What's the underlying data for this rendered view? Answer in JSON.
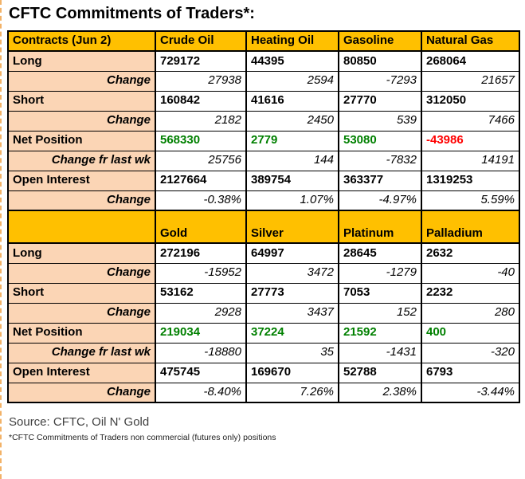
{
  "title": "CFTC Commitments of Traders*:",
  "colors": {
    "header_bg": "#FFC000",
    "label_bg": "#FBD5B5",
    "positive": "#008000",
    "negative": "#FF0000",
    "border": "#000000"
  },
  "tables": [
    {
      "name": "energy",
      "header": [
        "Contracts (Jun 2)",
        "Crude Oil",
        "Heating Oil",
        "Gasoline",
        "Natural Gas"
      ],
      "rows": [
        {
          "label": "Long",
          "type": "main",
          "values": [
            "729172",
            "44395",
            "80850",
            "268064"
          ]
        },
        {
          "label": "Change",
          "type": "change",
          "values": [
            "27938",
            "2594",
            "-7293",
            "21657"
          ]
        },
        {
          "label": "Short",
          "type": "main",
          "values": [
            "160842",
            "41616",
            "27770",
            "312050"
          ]
        },
        {
          "label": "Change",
          "type": "change",
          "values": [
            "2182",
            "2450",
            "539",
            "7466"
          ]
        },
        {
          "label": "Net Position",
          "type": "net",
          "values": [
            "568330",
            "2779",
            "53080",
            "-43986"
          ]
        },
        {
          "label": "Change fr last wk",
          "type": "change",
          "values": [
            "25756",
            "144",
            "-7832",
            "14191"
          ]
        },
        {
          "label": "Open Interest",
          "type": "main",
          "values": [
            "2127664",
            "389754",
            "363377",
            "1319253"
          ]
        },
        {
          "label": "Change",
          "type": "change",
          "values": [
            "-0.38%",
            "1.07%",
            "-4.97%",
            "5.59%"
          ]
        }
      ]
    },
    {
      "name": "metals",
      "header": [
        "",
        "Gold",
        "Silver",
        "Platinum",
        "Palladium"
      ],
      "rows": [
        {
          "label": "Long",
          "type": "main",
          "values": [
            "272196",
            "64997",
            "28645",
            "2632"
          ]
        },
        {
          "label": "Change",
          "type": "change",
          "values": [
            "-15952",
            "3472",
            "-1279",
            "-40"
          ]
        },
        {
          "label": "Short",
          "type": "main",
          "values": [
            "53162",
            "27773",
            "7053",
            "2232"
          ]
        },
        {
          "label": "Change",
          "type": "change",
          "values": [
            "2928",
            "3437",
            "152",
            "280"
          ]
        },
        {
          "label": "Net Position",
          "type": "net",
          "values": [
            "219034",
            "37224",
            "21592",
            "400"
          ]
        },
        {
          "label": "Change fr last wk",
          "type": "change",
          "values": [
            "-18880",
            "35",
            "-1431",
            "-320"
          ]
        },
        {
          "label": "Open Interest",
          "type": "main",
          "values": [
            "475745",
            "169670",
            "52788",
            "6793"
          ]
        },
        {
          "label": "Change",
          "type": "change",
          "values": [
            "-8.40%",
            "7.26%",
            "2.38%",
            "-3.44%"
          ]
        }
      ]
    }
  ],
  "footer": {
    "source": "Source: CFTC, Oil N' Gold",
    "note": "*CFTC Commitments of Traders non commercial (futures only) positions"
  }
}
